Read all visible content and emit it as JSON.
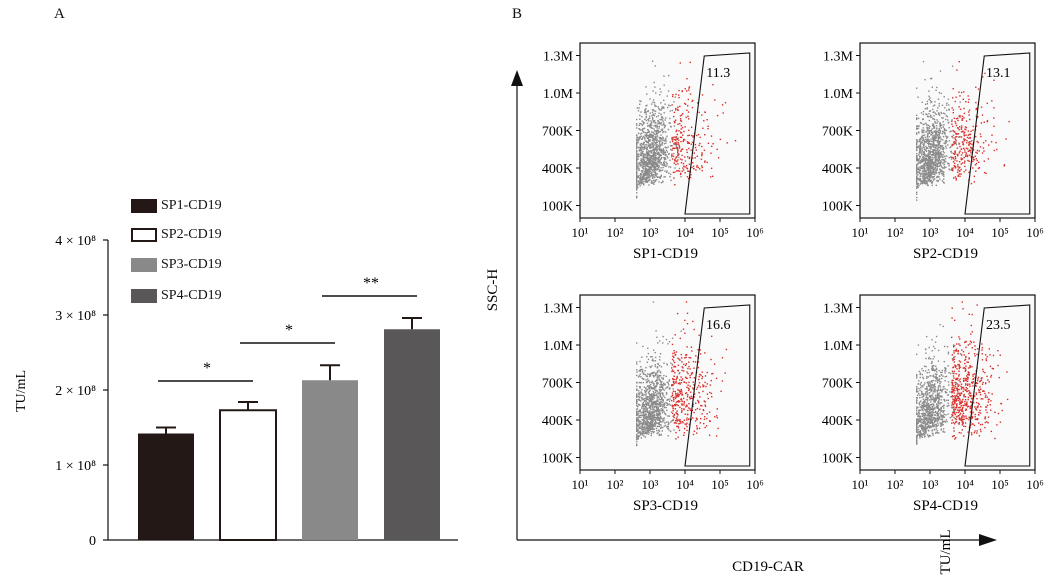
{
  "panel_a_label": "A",
  "panel_b_label": "B",
  "chart_data": [
    {
      "type": "bar",
      "title": "",
      "ylabel": "TU/mL",
      "xlabel": "",
      "categories": [
        "SP1-CD19",
        "SP2-CD19",
        "SP3-CD19",
        "SP4-CD19"
      ],
      "values": [
        142000000,
        173000000,
        213000000,
        281000000
      ],
      "errors": [
        8000000,
        11000000,
        20000000,
        15000000
      ],
      "colors": [
        "#231815",
        "#ffffff",
        "#898989",
        "#595757"
      ],
      "ylim": [
        0,
        400000000
      ],
      "yticks": [
        {
          "value": 0,
          "label": "0"
        },
        {
          "value": 100000000,
          "label": "1 × 10⁸"
        },
        {
          "value": 200000000,
          "label": "2 × 10⁸"
        },
        {
          "value": 300000000,
          "label": "3 × 10⁸"
        },
        {
          "value": 400000000,
          "label": "4 × 10⁸"
        }
      ],
      "legend": [
        "SP1-CD19",
        "SP2-CD19",
        "SP3-CD19",
        "SP4-CD19"
      ],
      "legend_position": "top-left",
      "significance": [
        {
          "pair": [
            0,
            1
          ],
          "label": "*"
        },
        {
          "pair": [
            1,
            2
          ],
          "label": "*"
        },
        {
          "pair": [
            2,
            3
          ],
          "label": "**"
        }
      ]
    },
    {
      "type": "scatter",
      "title": "",
      "xlabel": "CD19-CAR",
      "ylabel": "SSC-H",
      "x_axis_label_extra": "TU/mL",
      "xscale": "log",
      "xlim": [
        10,
        1000000
      ],
      "xticks": [
        "10¹",
        "10²",
        "10³",
        "10⁴",
        "10⁵",
        "10⁶"
      ],
      "ylim": [
        0,
        1400000
      ],
      "yticks": [
        "100K",
        "400K",
        "700K",
        "1.0M",
        "1.3M"
      ],
      "panels": [
        {
          "name": "SP1-CD19",
          "gate_percent": "11.3"
        },
        {
          "name": "SP2-CD19",
          "gate_percent": "13.1"
        },
        {
          "name": "SP3-CD19",
          "gate_percent": "16.6"
        },
        {
          "name": "SP4-CD19",
          "gate_percent": "23.5"
        }
      ],
      "colors": {
        "population": "#8a8a8a",
        "positive": "#d9302b"
      }
    }
  ]
}
